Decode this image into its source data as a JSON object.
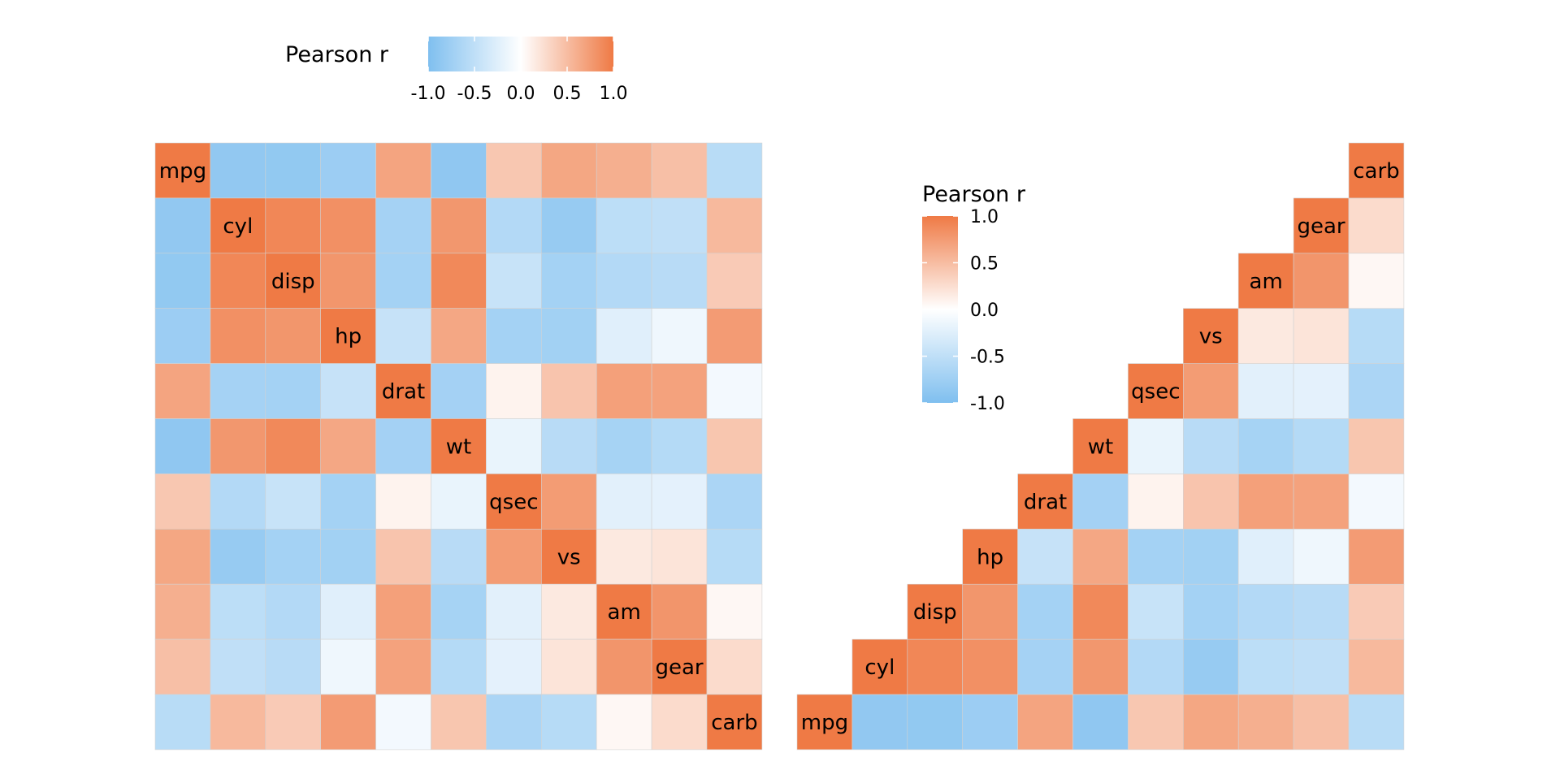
{
  "chart_data": [
    {
      "type": "heatmap",
      "layout": "full matrix",
      "variables": [
        "mpg",
        "cyl",
        "disp",
        "hp",
        "drat",
        "wt",
        "qsec",
        "vs",
        "am",
        "gear",
        "carb"
      ],
      "legend": {
        "title": "Pearson r",
        "placement": "top",
        "ticks": [
          "-1.0",
          "-0.5",
          "0.0",
          "0.5",
          "1.0"
        ]
      },
      "color_scale": {
        "low": "#7fbfef",
        "mid": "#ffffff",
        "high": "#ef7a45",
        "limits": [
          -1,
          1
        ]
      }
    },
    {
      "type": "heatmap",
      "layout": "upper triangle",
      "variables": [
        "mpg",
        "cyl",
        "disp",
        "hp",
        "drat",
        "wt",
        "qsec",
        "vs",
        "am",
        "gear",
        "carb"
      ],
      "legend": {
        "title": "Pearson r",
        "placement": "inside-top-left",
        "ticks": [
          "1.0",
          "0.5",
          "0.0",
          "-0.5",
          "-1.0"
        ]
      },
      "color_scale": {
        "low": "#7fbfef",
        "mid": "#ffffff",
        "high": "#ef7a45",
        "limits": [
          -1,
          1
        ]
      }
    }
  ],
  "matrix": [
    [
      1.0,
      -0.852,
      -0.848,
      -0.776,
      0.681,
      -0.868,
      0.419,
      0.664,
      0.6,
      0.48,
      -0.551
    ],
    [
      -0.852,
      1.0,
      0.902,
      0.832,
      -0.7,
      0.782,
      -0.591,
      -0.811,
      -0.523,
      -0.493,
      0.527
    ],
    [
      -0.848,
      0.902,
      1.0,
      0.791,
      -0.71,
      0.888,
      -0.434,
      -0.71,
      -0.591,
      -0.556,
      0.395
    ],
    [
      -0.776,
      0.832,
      0.791,
      1.0,
      -0.449,
      0.659,
      -0.708,
      -0.723,
      -0.243,
      -0.126,
      0.75
    ],
    [
      0.681,
      -0.7,
      -0.71,
      -0.449,
      1.0,
      -0.712,
      0.091,
      0.44,
      0.713,
      0.7,
      -0.091
    ],
    [
      -0.868,
      0.782,
      0.888,
      0.659,
      -0.712,
      1.0,
      -0.175,
      -0.555,
      -0.692,
      -0.583,
      0.428
    ],
    [
      0.419,
      -0.591,
      -0.434,
      -0.708,
      0.091,
      -0.175,
      1.0,
      0.745,
      -0.23,
      -0.213,
      -0.656
    ],
    [
      0.664,
      -0.811,
      -0.71,
      -0.723,
      0.44,
      -0.555,
      0.745,
      1.0,
      0.168,
      0.206,
      -0.57
    ],
    [
      0.6,
      -0.523,
      -0.591,
      -0.243,
      0.713,
      -0.692,
      -0.23,
      0.168,
      1.0,
      0.794,
      0.058
    ],
    [
      0.48,
      -0.493,
      -0.556,
      -0.126,
      0.7,
      -0.583,
      -0.213,
      0.206,
      0.794,
      1.0,
      0.274
    ],
    [
      -0.551,
      0.527,
      0.395,
      0.75,
      -0.091,
      0.428,
      -0.656,
      -0.57,
      0.058,
      0.274,
      1.0
    ]
  ]
}
